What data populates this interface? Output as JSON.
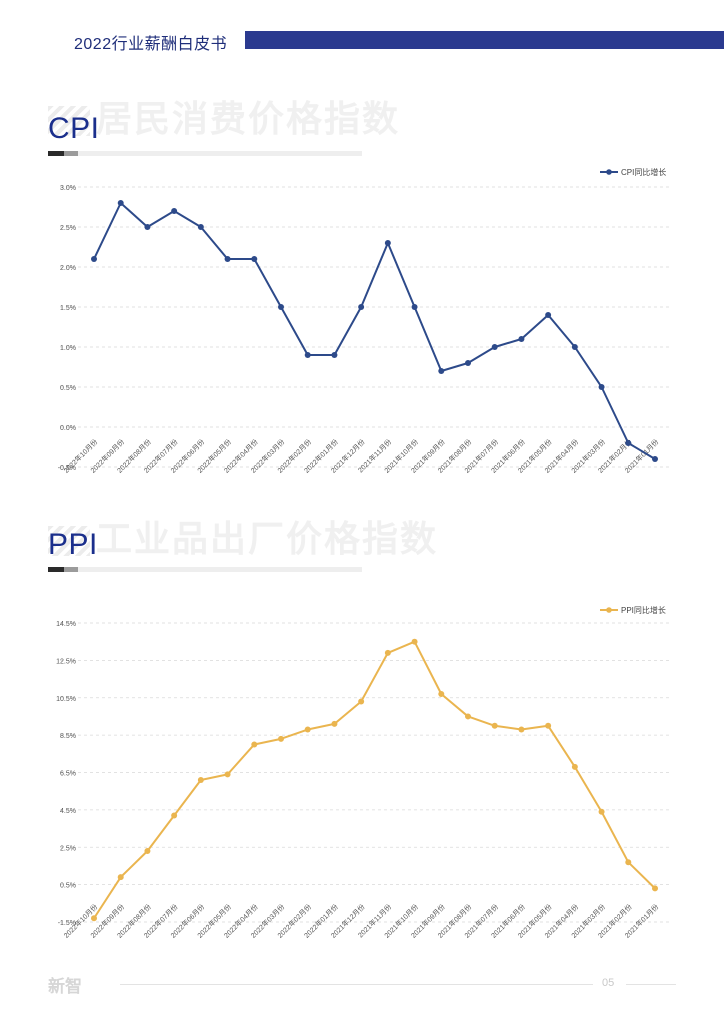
{
  "header": {
    "title": "2022行业薪酬白皮书"
  },
  "sections": [
    {
      "title": "CPI",
      "watermark": "居民消费价格指数"
    },
    {
      "title": "PPI",
      "watermark": "工业品出厂价格指数"
    }
  ],
  "footer": {
    "logo": "新智",
    "page": "05"
  },
  "colors": {
    "brand": "#2b3a8f",
    "cpi": "#2d4a8a",
    "ppi": "#eab54f"
  },
  "chart_data": [
    {
      "type": "line",
      "legend_position": "top-right",
      "grid": true,
      "categories": [
        "2022年10月份",
        "2022年09月份",
        "2022年08月份",
        "2022年07月份",
        "2022年06月份",
        "2022年05月份",
        "2022年04月份",
        "2022年03月份",
        "2022年02月份",
        "2022年01月份",
        "2021年12月份",
        "2021年11月份",
        "2021年10月份",
        "2021年09月份",
        "2021年08月份",
        "2021年07月份",
        "2021年06月份",
        "2021年05月份",
        "2021年04月份",
        "2021年03月份",
        "2021年02月份",
        "2021年01月份"
      ],
      "yticks": [
        "3.0%",
        "2.5%",
        "2.0%",
        "1.5%",
        "1.0%",
        "0.5%",
        "0.0%",
        "-0.5%"
      ],
      "ylim": [
        -0.5,
        3.0
      ],
      "series": [
        {
          "name": "CPI同比增长",
          "values": [
            2.1,
            2.8,
            2.5,
            2.7,
            2.5,
            2.1,
            2.1,
            1.5,
            0.9,
            0.9,
            1.5,
            2.3,
            1.5,
            0.7,
            0.8,
            1.0,
            1.1,
            1.4,
            1.0,
            0.5,
            -0.2,
            -0.4
          ]
        }
      ]
    },
    {
      "type": "line",
      "legend_position": "top-right",
      "grid": true,
      "categories": [
        "2022年10月份",
        "2022年09月份",
        "2022年08月份",
        "2022年07月份",
        "2022年06月份",
        "2022年05月份",
        "2022年04月份",
        "2022年03月份",
        "2022年02月份",
        "2022年01月份",
        "2021年12月份",
        "2021年11月份",
        "2021年10月份",
        "2021年09月份",
        "2021年08月份",
        "2021年07月份",
        "2021年06月份",
        "2021年05月份",
        "2021年04月份",
        "2021年03月份",
        "2021年02月份",
        "2021年01月份"
      ],
      "yticks": [
        "14.5%",
        "12.5%",
        "10.5%",
        "8.5%",
        "6.5%",
        "4.5%",
        "2.5%",
        "0.5%",
        "-1.5%"
      ],
      "ylim": [
        -1.5,
        14.5
      ],
      "series": [
        {
          "name": "PPI同比增长",
          "values": [
            -1.3,
            0.9,
            2.3,
            4.2,
            6.1,
            6.4,
            8.0,
            8.3,
            8.8,
            9.1,
            10.3,
            12.9,
            13.5,
            10.7,
            9.5,
            9.0,
            8.8,
            9.0,
            6.8,
            4.4,
            1.7,
            0.3
          ]
        }
      ]
    }
  ]
}
